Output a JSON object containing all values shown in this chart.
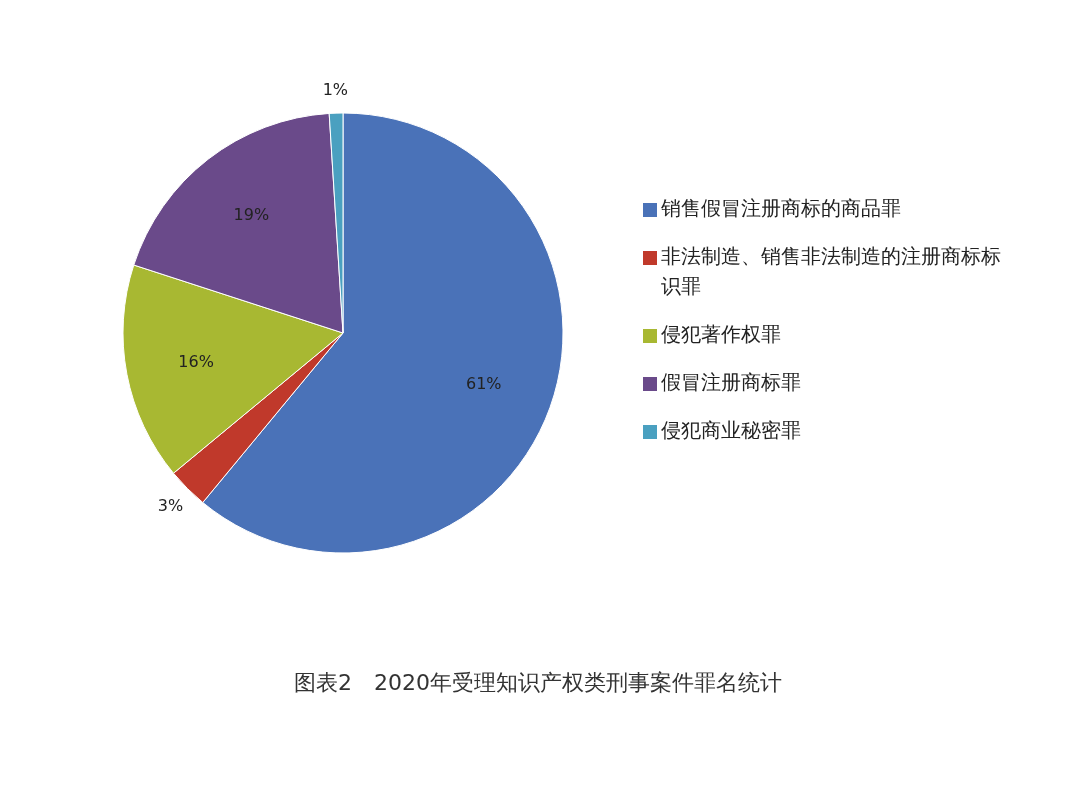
{
  "chart_data": {
    "type": "pie",
    "title": "图表2　2020年受理知识产权类刑事案件罪名统计",
    "categories": [
      "销售假冒注册商标的商品罪",
      "非法制造、销售非法制造的注册商标标识罪",
      "侵犯著作权罪",
      "假冒注册商标罪",
      "侵犯商业秘密罪"
    ],
    "values": [
      61,
      3,
      16,
      19,
      1
    ],
    "colors": [
      "#4a72b8",
      "#c0392b",
      "#a8b832",
      "#6a4a8a",
      "#4aa0c0"
    ],
    "value_labels": [
      "61%",
      "3%",
      "16%",
      "19%",
      "1%"
    ],
    "legend": "right"
  }
}
